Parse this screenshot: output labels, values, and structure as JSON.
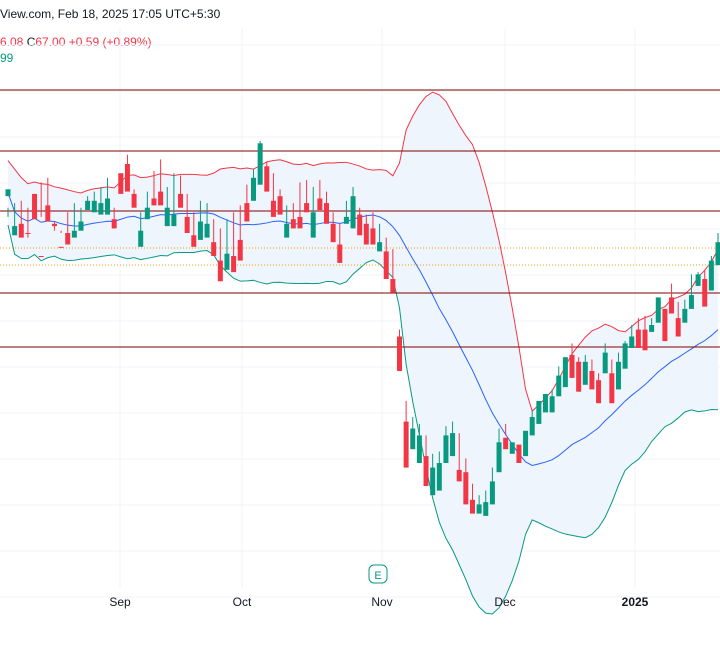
{
  "header": {
    "source_text": "View.com, Feb 18, 2025 17:05 UTC+5:30"
  },
  "ohlc": {
    "prev_value": "6.08",
    "close_label": "C",
    "close_value": "67.00",
    "change": "+0.59",
    "change_pct": "(+0.89%)"
  },
  "indicator_value": "99",
  "earnings_badge": "E",
  "colors": {
    "up": "#089981",
    "down": "#f23645",
    "basis": "#2962ff",
    "upper_band": "#f23645",
    "lower_band": "#089981",
    "band_fill": "#eef5fc",
    "hline": "#800000",
    "dotted": "#ff9800"
  },
  "chart_data": {
    "type": "candlestick",
    "x_labels": [
      "Sep",
      "Oct",
      "Nov",
      "Dec",
      "2025"
    ],
    "x_label_bold": [
      "2025"
    ],
    "grid": true,
    "horizontal_levels": 5,
    "dotted_levels": 2,
    "indicators": [
      "Bollinger Bands (basis, upper, lower)"
    ],
    "candles": [
      [
        -3,
        1,
        6,
        9,
        1
      ],
      [
        3,
        -9,
        -11,
        -7,
        1
      ],
      [
        4,
        -7,
        -12,
        -6,
        0
      ],
      [
        1,
        -12,
        -8,
        -10,
        0
      ],
      [
        -3,
        2,
        -4,
        7,
        0
      ],
      [
        12,
        -3,
        -8,
        -20,
        0
      ],
      [
        14,
        -2,
        -5,
        2,
        0
      ],
      [
        -5,
        -9,
        -7,
        -6,
        0
      ],
      [
        -10,
        -9,
        -11,
        -16,
        0
      ],
      [
        -1,
        -13,
        -15,
        -10,
        0
      ],
      [
        3,
        -9,
        -12,
        -9,
        1
      ],
      [
        1,
        -7,
        -9,
        -5,
        1
      ],
      [
        6,
        2,
        0,
        4,
        1
      ],
      [
        8,
        0,
        -1,
        4,
        1
      ],
      [
        10,
        0,
        -2,
        3,
        1
      ],
      [
        14,
        3,
        -2,
        5,
        1
      ],
      [
        1,
        -8,
        -8,
        -4,
        0
      ],
      [
        15,
        13,
        7,
        16,
        0
      ],
      [
        24,
        11,
        8,
        20,
        0
      ],
      [
        9,
        5,
        1,
        7,
        0
      ],
      [
        -1,
        -13,
        -16,
        -9,
        1
      ],
      [
        8,
        -1,
        -4,
        1,
        1
      ],
      [
        17,
        4,
        2,
        5,
        0
      ],
      [
        22,
        4,
        2,
        8,
        0
      ],
      [
        10,
        -1,
        -7,
        1,
        1
      ],
      [
        16,
        -5,
        -7,
        -2,
        1
      ],
      [
        15,
        3,
        1,
        7,
        0
      ],
      [
        7,
        -7,
        -10,
        -3,
        0
      ],
      [
        -1,
        -14,
        -16,
        -11,
        0
      ],
      [
        4,
        -10,
        -13,
        -5,
        1
      ],
      [
        3,
        -10,
        -12,
        -6,
        1
      ],
      [
        -4,
        -16,
        -20,
        -14,
        0
      ],
      [
        -8,
        -27,
        -31,
        -22,
        0
      ],
      [
        -4,
        -21,
        -26,
        -19,
        1
      ],
      [
        -1,
        -22,
        -27,
        -20,
        0
      ],
      [
        2,
        -18,
        -22,
        -13,
        0
      ],
      [
        11,
        -1,
        -5,
        3,
        0
      ],
      [
        18,
        10,
        4,
        14,
        1
      ],
      [
        30,
        14,
        11,
        29,
        1
      ],
      [
        21,
        12,
        8,
        19,
        0
      ],
      [
        16,
        1,
        -3,
        4,
        0
      ],
      [
        9,
        5,
        -2,
        6,
        0
      ],
      [
        2,
        -9,
        -12,
        -6,
        1
      ],
      [
        3,
        -6,
        -8,
        -4,
        0
      ],
      [
        12,
        -5,
        -8,
        -3,
        0
      ],
      [
        13,
        2,
        -1,
        3,
        0
      ],
      [
        10,
        -7,
        -12,
        -1,
        1
      ],
      [
        13,
        4,
        0,
        5,
        0
      ],
      [
        8,
        -1,
        -6,
        3,
        0
      ],
      [
        -1,
        -8,
        -14,
        -6,
        0
      ],
      [
        -6,
        -20,
        -23,
        -15,
        0
      ],
      [
        4,
        -5,
        -6,
        -3,
        1
      ],
      [
        10,
        0,
        -8,
        6,
        1
      ],
      [
        1,
        -8,
        -11,
        -2,
        0
      ],
      [
        -2,
        -13,
        -15,
        -6,
        0
      ],
      [
        -1,
        -12,
        -15,
        -8,
        0
      ],
      [
        -6,
        -16,
        -18,
        -14,
        1
      ],
      [
        -12,
        -27,
        -30,
        -18,
        0
      ],
      [
        -17,
        -33,
        -36,
        -30,
        0
      ],
      [
        -52,
        -70,
        -70,
        -55,
        0
      ],
      [
        -83,
        -107,
        -112,
        -92,
        0
      ],
      [
        -90,
        -101,
        -104,
        -95,
        1
      ],
      [
        -93,
        -108,
        -110,
        -98,
        1
      ],
      [
        -98,
        -118,
        -120,
        -107,
        0
      ],
      [
        -106,
        -120,
        -124,
        -112,
        1
      ],
      [
        -105,
        -118,
        -122,
        -110,
        1
      ],
      [
        -94,
        -107,
        -110,
        -98,
        1
      ],
      [
        -92,
        -104,
        -107,
        -97,
        1
      ],
      [
        -97,
        -117,
        -118,
        -113,
        0
      ],
      [
        -108,
        -124,
        -128,
        -114,
        0
      ],
      [
        -119,
        -128,
        -132,
        -126,
        0
      ],
      [
        -124,
        -130,
        -132,
        -128,
        1
      ],
      [
        -122,
        -130,
        -133,
        -127,
        1
      ],
      [
        -112,
        -125,
        -128,
        -118,
        1
      ],
      [
        -95,
        -112,
        -114,
        -101,
        1
      ],
      [
        -93,
        -98,
        -104,
        -99,
        0
      ],
      [
        -103,
        -105,
        -106,
        -101,
        1
      ],
      [
        -103,
        -106,
        -110,
        -102,
        0
      ],
      [
        -98,
        -102,
        -107,
        -96,
        1
      ],
      [
        -87,
        -95,
        -98,
        -90,
        1
      ],
      [
        -86,
        -88,
        -93,
        -83,
        1
      ],
      [
        -81,
        -86,
        -88,
        -80,
        1
      ],
      [
        -78,
        -86,
        -88,
        -81,
        1
      ],
      [
        -68,
        -77,
        -81,
        -72,
        1
      ],
      [
        -64,
        -75,
        -77,
        -64,
        1
      ],
      [
        -58,
        -68,
        -73,
        -63,
        0
      ],
      [
        -64,
        -75,
        -79,
        -66,
        0
      ],
      [
        -63,
        -74,
        -76,
        -66,
        1
      ],
      [
        -65,
        -76,
        -78,
        -70,
        0
      ],
      [
        -71,
        -79,
        -84,
        -74,
        0
      ],
      [
        -58,
        -65,
        -71,
        -62,
        1
      ],
      [
        -65,
        -80,
        -84,
        -71,
        0
      ],
      [
        -62,
        -75,
        -78,
        -66,
        1
      ],
      [
        -57,
        -62,
        -69,
        -58,
        1
      ],
      [
        -50,
        -57,
        -60,
        -55,
        1
      ],
      [
        -47,
        -57,
        -60,
        -52,
        0
      ],
      [
        -46,
        -59,
        -61,
        -52,
        0
      ],
      [
        -47,
        -52,
        -53,
        -50,
        1
      ],
      [
        -38,
        -45,
        -49,
        -38,
        1
      ],
      [
        -43,
        -53,
        -57,
        -43,
        0
      ],
      [
        -32,
        -43,
        -45,
        -38,
        0
      ],
      [
        -40,
        -53,
        -55,
        -47,
        0
      ],
      [
        -39,
        -46,
        -49,
        -43,
        1
      ],
      [
        -28,
        -41,
        -43,
        -37,
        1
      ],
      [
        -27,
        -33,
        -33,
        -28,
        1
      ],
      [
        -26,
        -40,
        -42,
        -30,
        0
      ],
      [
        -20,
        -29,
        -35,
        -22,
        1
      ],
      [
        -10,
        -21,
        -24,
        -14,
        1
      ]
    ],
    "candle_value_order": [
      "high",
      "low",
      "open_or_close_low",
      "open_or_close_high",
      "is_up(1=green)"
    ],
    "y_units": "relative price points (unlabeled axis)"
  }
}
